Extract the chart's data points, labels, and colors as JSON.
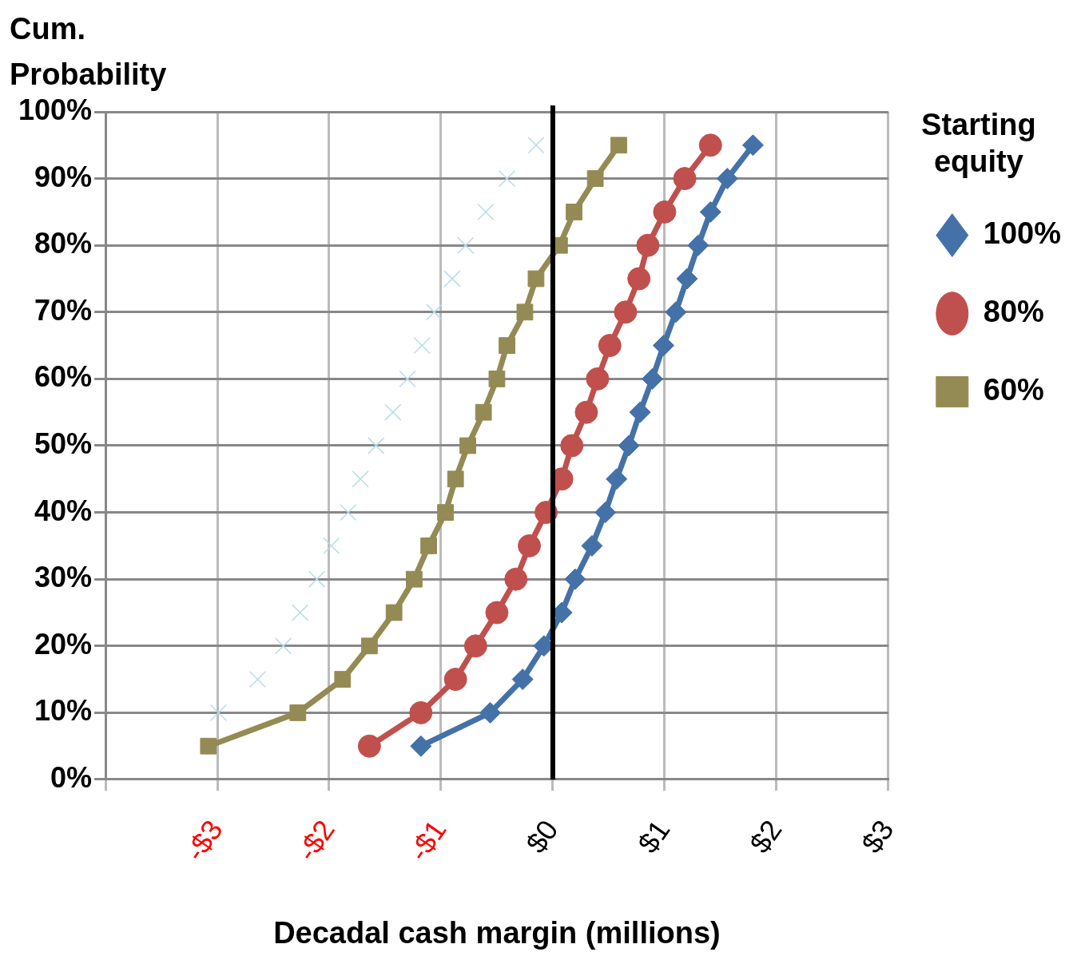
{
  "chart_data": {
    "type": "line",
    "xlabel": "Decadal cash margin (millions)",
    "ylabel": "Cum. Probability",
    "legend_title": "Starting equity",
    "legend": "right",
    "grid": true,
    "line_style": "solid",
    "xlim": [
      -4,
      3
    ],
    "xticks": [
      {
        "value": -4,
        "label": null
      },
      {
        "value": -3,
        "label": "-$3"
      },
      {
        "value": -2,
        "label": "-$2"
      },
      {
        "value": -1,
        "label": "-$1"
      },
      {
        "value": 0,
        "label": "$0"
      },
      {
        "value": 1,
        "label": "$1"
      },
      {
        "value": 2,
        "label": "$2"
      },
      {
        "value": 3,
        "label": "$3"
      }
    ],
    "ylim": [
      0,
      100
    ],
    "yticks": [
      {
        "value": 0,
        "label": "0%"
      },
      {
        "value": 10,
        "label": "10%"
      },
      {
        "value": 20,
        "label": "20%"
      },
      {
        "value": 30,
        "label": "30%"
      },
      {
        "value": 40,
        "label": "40%"
      },
      {
        "value": 50,
        "label": "50%"
      },
      {
        "value": 60,
        "label": "60%"
      },
      {
        "value": 70,
        "label": "70%"
      },
      {
        "value": 80,
        "label": "80%"
      },
      {
        "value": 90,
        "label": "90%"
      },
      {
        "value": 100,
        "label": "100%"
      }
    ],
    "ref_lines": [
      {
        "axis": "x",
        "value": 0,
        "color": "#000000"
      }
    ],
    "series": [
      {
        "name": "100%",
        "color": "#4472a8",
        "marker": "diamond",
        "x": [
          -1.18,
          -0.56,
          -0.27,
          -0.08,
          0.08,
          0.2,
          0.35,
          0.47,
          0.57,
          0.68,
          0.78,
          0.89,
          0.99,
          1.1,
          1.2,
          1.3,
          1.41,
          1.56,
          1.79
        ],
        "values": [
          5,
          10,
          15,
          20,
          25,
          30,
          35,
          40,
          45,
          50,
          55,
          60,
          65,
          70,
          75,
          80,
          85,
          90,
          95
        ]
      },
      {
        "name": "80%",
        "color": "#c0504d",
        "marker": "circle",
        "x": [
          -1.64,
          -1.18,
          -0.87,
          -0.69,
          -0.5,
          -0.33,
          -0.21,
          -0.06,
          0.08,
          0.17,
          0.3,
          0.4,
          0.51,
          0.65,
          0.77,
          0.85,
          1.0,
          1.18,
          1.41
        ],
        "values": [
          5,
          10,
          15,
          20,
          25,
          30,
          35,
          40,
          45,
          50,
          55,
          60,
          65,
          70,
          75,
          80,
          85,
          90,
          95
        ]
      },
      {
        "name": "60%",
        "color": "#948a54",
        "marker": "square",
        "x": [
          -3.08,
          -2.28,
          -1.88,
          -1.64,
          -1.42,
          -1.24,
          -1.11,
          -0.96,
          -0.87,
          -0.76,
          -0.62,
          -0.5,
          -0.41,
          -0.25,
          -0.15,
          0.06,
          0.19,
          0.38,
          0.59
        ],
        "values": [
          5,
          10,
          15,
          20,
          25,
          30,
          35,
          40,
          45,
          50,
          55,
          60,
          65,
          70,
          75,
          80,
          85,
          90,
          95
        ]
      },
      {
        "type": "scatter",
        "color": "#b7dde8",
        "marker": "cross",
        "x": [
          -2.99,
          -2.64,
          -2.41,
          -2.26,
          -2.11,
          -1.98,
          -1.83,
          -1.72,
          -1.58,
          -1.43,
          -1.3,
          -1.17,
          -1.06,
          -0.9,
          -0.78,
          -0.6,
          -0.41,
          -0.15
        ],
        "values": [
          10,
          15,
          20,
          25,
          30,
          35,
          40,
          45,
          50,
          55,
          60,
          65,
          70,
          75,
          80,
          85,
          90,
          95
        ]
      }
    ]
  }
}
